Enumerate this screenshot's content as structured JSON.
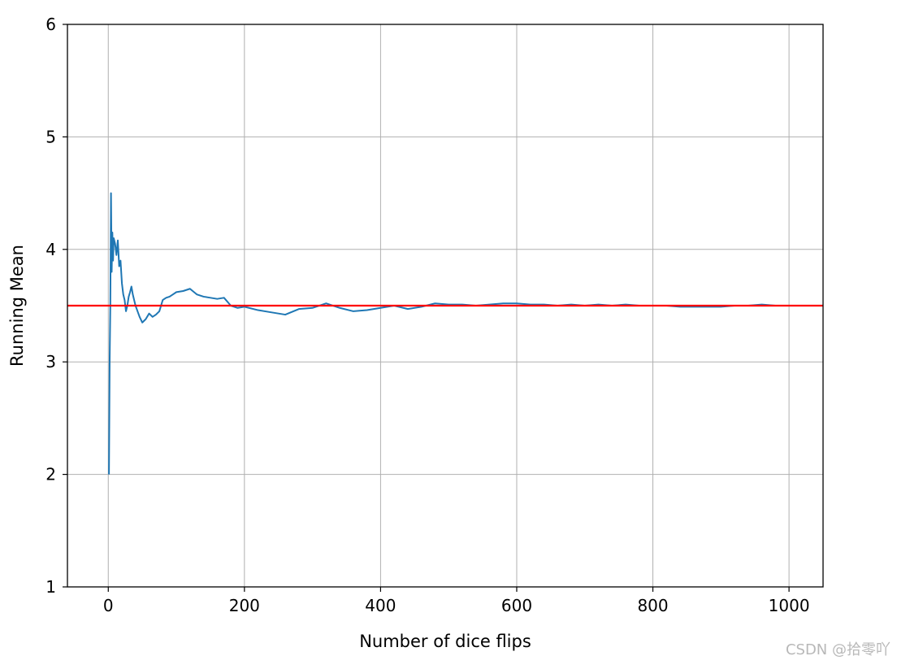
{
  "chart_data": {
    "type": "line",
    "xlabel": "Number of dice flips",
    "ylabel": "Running Mean",
    "xlim": [
      -60,
      1050
    ],
    "ylim": [
      1,
      6
    ],
    "xticks": [
      0,
      200,
      400,
      600,
      800,
      1000
    ],
    "yticks": [
      1,
      2,
      3,
      4,
      5,
      6
    ],
    "grid": true,
    "series": [
      {
        "color": "#1f77b4",
        "x": [
          1,
          2,
          3,
          4,
          5,
          6,
          7,
          8,
          10,
          12,
          14,
          16,
          18,
          20,
          22,
          24,
          26,
          28,
          30,
          32,
          34,
          36,
          38,
          40,
          43,
          46,
          50,
          55,
          60,
          65,
          70,
          75,
          80,
          85,
          90,
          95,
          100,
          110,
          120,
          130,
          140,
          150,
          160,
          170,
          180,
          190,
          200,
          220,
          240,
          260,
          280,
          300,
          320,
          340,
          360,
          380,
          400,
          420,
          440,
          460,
          480,
          500,
          520,
          540,
          560,
          580,
          600,
          620,
          640,
          660,
          680,
          700,
          720,
          740,
          760,
          780,
          800,
          820,
          840,
          860,
          880,
          900,
          920,
          940,
          960,
          980,
          1000
        ],
        "y": [
          2.0,
          3.0,
          3.5,
          4.5,
          3.8,
          4.15,
          3.9,
          4.1,
          4.05,
          3.95,
          4.08,
          3.85,
          3.9,
          3.7,
          3.6,
          3.55,
          3.45,
          3.5,
          3.58,
          3.62,
          3.67,
          3.6,
          3.55,
          3.5,
          3.45,
          3.4,
          3.35,
          3.38,
          3.43,
          3.4,
          3.42,
          3.45,
          3.55,
          3.57,
          3.58,
          3.6,
          3.62,
          3.63,
          3.65,
          3.6,
          3.58,
          3.57,
          3.56,
          3.57,
          3.5,
          3.48,
          3.49,
          3.46,
          3.44,
          3.42,
          3.47,
          3.48,
          3.52,
          3.48,
          3.45,
          3.46,
          3.48,
          3.5,
          3.47,
          3.49,
          3.52,
          3.51,
          3.51,
          3.5,
          3.51,
          3.52,
          3.52,
          3.51,
          3.51,
          3.5,
          3.51,
          3.5,
          3.51,
          3.5,
          3.51,
          3.5,
          3.5,
          3.5,
          3.49,
          3.49,
          3.49,
          3.49,
          3.5,
          3.5,
          3.51,
          3.5,
          3.5
        ]
      }
    ],
    "hlines": [
      {
        "y": 3.5,
        "color": "#ff0000"
      }
    ]
  },
  "watermark": "CSDN @拾零吖"
}
